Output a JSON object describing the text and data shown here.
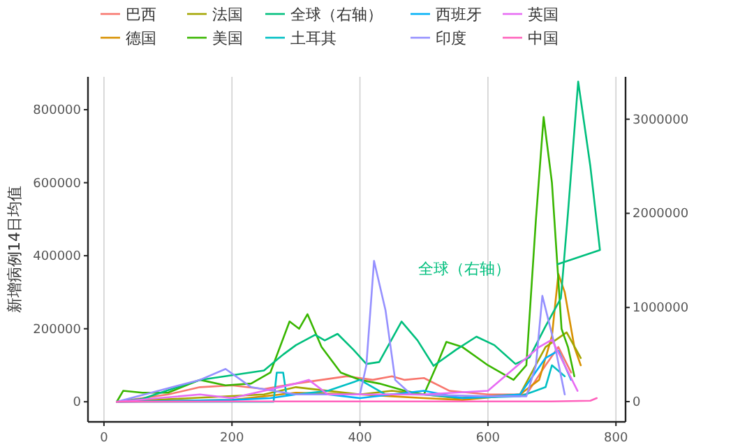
{
  "chart_data": {
    "type": "line",
    "ylabel": "新增病例14日均值",
    "xlim": [
      -25,
      815
    ],
    "xticks": [
      0,
      200,
      400,
      600,
      800
    ],
    "ylim": [
      -55000,
      890000
    ],
    "yticks": [
      0,
      200000,
      400000,
      600000,
      800000
    ],
    "y2lim": [
      -215000,
      3450000
    ],
    "y2ticks": [
      0,
      1000000,
      2000000,
      3000000
    ],
    "grid": "x",
    "legend": "top",
    "annotations": [
      "全球（右轴）"
    ],
    "series": [
      {
        "name": "巴西",
        "color": "#f8766d",
        "x": [
          20,
          100,
          150,
          200,
          250,
          300,
          380,
          420,
          450,
          470,
          500,
          540,
          600,
          660,
          690,
          710,
          730
        ],
        "values": [
          0,
          20000,
          40000,
          45000,
          35000,
          50000,
          70000,
          60000,
          70000,
          60000,
          65000,
          30000,
          20000,
          20000,
          100000,
          150000,
          80000
        ]
      },
      {
        "name": "德国",
        "color": "#d89000",
        "x": [
          20,
          200,
          300,
          400,
          450,
          500,
          560,
          650,
          680,
          700,
          710,
          720,
          735,
          745
        ],
        "values": [
          0,
          5000,
          25000,
          20000,
          15000,
          10000,
          5000,
          20000,
          60000,
          180000,
          350000,
          300000,
          150000,
          100000
        ]
      },
      {
        "name": "法国",
        "color": "#a3a500",
        "x": [
          20,
          250,
          300,
          400,
          450,
          550,
          650,
          690,
          723,
          745
        ],
        "values": [
          0,
          20000,
          40000,
          20000,
          30000,
          10000,
          20000,
          150000,
          190000,
          120000
        ]
      },
      {
        "name": "美国",
        "color": "#39b600",
        "x": [
          20,
          30,
          60,
          100,
          150,
          190,
          230,
          260,
          290,
          305,
          318,
          340,
          370,
          400,
          430,
          470,
          500,
          520,
          535,
          560,
          600,
          640,
          660,
          675,
          687,
          700,
          715,
          725,
          735
        ],
        "values": [
          0,
          30000,
          25000,
          25000,
          60000,
          45000,
          50000,
          80000,
          220000,
          200000,
          240000,
          150000,
          80000,
          60000,
          50000,
          30000,
          20000,
          100000,
          164000,
          150000,
          100000,
          60000,
          100000,
          500000,
          780000,
          600000,
          200000,
          150000,
          70000
        ]
      },
      {
        "name": "全球（右轴）",
        "color": "#00bf7d",
        "axis": "y2",
        "x": [
          20,
          60,
          100,
          150,
          200,
          250,
          280,
          300,
          330,
          345,
          365,
          390,
          410,
          430,
          465,
          490,
          515,
          550,
          582,
          610,
          643,
          665,
          690,
          714,
          725,
          741,
          760,
          775,
          709
        ],
        "values": [
          0,
          30000,
          120000,
          230000,
          280000,
          330000,
          500000,
          600000,
          710000,
          650000,
          720000,
          550000,
          400000,
          420000,
          850000,
          650000,
          380000,
          550000,
          690000,
          600000,
          400000,
          470000,
          800000,
          1100000,
          2000000,
          3400000,
          2500000,
          1610000,
          1460000
        ]
      },
      {
        "name": "土耳其",
        "color": "#00bfc4",
        "x": [
          20,
          265,
          270,
          280,
          285,
          300,
          350,
          400,
          440,
          500,
          560,
          650,
          690,
          700,
          720
        ],
        "values": [
          0,
          0,
          80000,
          80000,
          20000,
          20000,
          30000,
          60000,
          20000,
          20000,
          10000,
          15000,
          40000,
          100000,
          70000
        ]
      },
      {
        "name": "西班牙",
        "color": "#00b0f6",
        "x": [
          20,
          200,
          260,
          300,
          350,
          400,
          450,
          500,
          560,
          650,
          690,
          710,
          730
        ],
        "values": [
          0,
          5000,
          10000,
          20000,
          20000,
          10000,
          20000,
          30000,
          10000,
          20000,
          120000,
          140000,
          60000
        ]
      },
      {
        "name": "印度",
        "color": "#9590ff",
        "x": [
          20,
          150,
          190,
          230,
          300,
          400,
          410,
          422,
          440,
          455,
          480,
          600,
          660,
          675,
          685,
          705,
          720
        ],
        "values": [
          0,
          60000,
          90000,
          40000,
          20000,
          20000,
          100000,
          386000,
          250000,
          60000,
          20000,
          15000,
          15000,
          100000,
          290000,
          150000,
          20000
        ]
      },
      {
        "name": "英国",
        "color": "#e76bf3",
        "x": [
          20,
          150,
          200,
          300,
          320,
          350,
          500,
          600,
          680,
          700,
          720,
          740
        ],
        "values": [
          0,
          20000,
          10000,
          50000,
          60000,
          20000,
          20000,
          30000,
          150000,
          170000,
          100000,
          30000
        ]
      },
      {
        "name": "中国",
        "color": "#ff62bc",
        "x": [
          20,
          200,
          400,
          600,
          700,
          760,
          770
        ],
        "values": [
          0,
          1000,
          1000,
          1000,
          1000,
          3000,
          10000
        ]
      }
    ]
  }
}
